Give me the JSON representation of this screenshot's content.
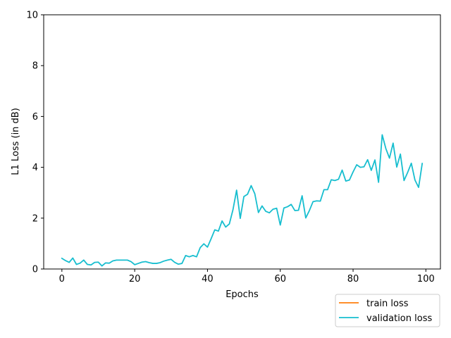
{
  "chart_data": {
    "type": "line",
    "title": "",
    "xlabel": "Epochs",
    "ylabel": "L1 Loss (in dB)",
    "xlim": [
      -5,
      104
    ],
    "ylim": [
      0,
      10
    ],
    "xticks": [
      0,
      20,
      40,
      60,
      80,
      100
    ],
    "yticks": [
      0,
      2,
      4,
      6,
      8,
      10
    ],
    "grid": false,
    "legend_position": "bottom-right, outside plot",
    "series": [
      {
        "name": "train loss",
        "color": "#ff7f0e",
        "x": [],
        "values": []
      },
      {
        "name": "validation loss",
        "color": "#17becf",
        "x": [
          0,
          1,
          2,
          3,
          4,
          5,
          6,
          7,
          8,
          9,
          10,
          11,
          12,
          13,
          14,
          15,
          16,
          17,
          18,
          19,
          20,
          21,
          22,
          23,
          24,
          25,
          26,
          27,
          28,
          29,
          30,
          31,
          32,
          33,
          34,
          35,
          36,
          37,
          38,
          39,
          40,
          41,
          42,
          43,
          44,
          45,
          46,
          47,
          48,
          49,
          50,
          51,
          52,
          53,
          54,
          55,
          56,
          57,
          58,
          59,
          60,
          61,
          62,
          63,
          64,
          65,
          66,
          67,
          68,
          69,
          70,
          71,
          72,
          73,
          74,
          75,
          76,
          77,
          78,
          79,
          80,
          81,
          82,
          83,
          84,
          85,
          86,
          87,
          88,
          89,
          90,
          91,
          92,
          93,
          94,
          95,
          96,
          97,
          98,
          99
        ],
        "values": [
          0.42,
          0.33,
          0.26,
          0.43,
          0.18,
          0.23,
          0.35,
          0.18,
          0.16,
          0.26,
          0.27,
          0.12,
          0.24,
          0.23,
          0.32,
          0.35,
          0.35,
          0.35,
          0.35,
          0.29,
          0.17,
          0.22,
          0.27,
          0.29,
          0.25,
          0.22,
          0.22,
          0.25,
          0.31,
          0.35,
          0.38,
          0.26,
          0.19,
          0.22,
          0.53,
          0.48,
          0.53,
          0.48,
          0.84,
          0.99,
          0.86,
          1.19,
          1.54,
          1.49,
          1.89,
          1.65,
          1.77,
          2.33,
          3.1,
          1.99,
          2.85,
          2.94,
          3.28,
          2.96,
          2.22,
          2.48,
          2.27,
          2.21,
          2.35,
          2.39,
          1.73,
          2.4,
          2.45,
          2.54,
          2.3,
          2.31,
          2.88,
          2.01,
          2.3,
          2.65,
          2.68,
          2.67,
          3.12,
          3.12,
          3.51,
          3.48,
          3.53,
          3.89,
          3.46,
          3.5,
          3.82,
          4.1,
          4.0,
          4.02,
          4.3,
          3.88,
          4.29,
          3.41,
          5.28,
          4.74,
          4.36,
          4.95,
          4.01,
          4.52,
          3.48,
          3.8,
          4.16,
          3.5,
          3.21,
          4.15
        ]
      }
    ]
  }
}
